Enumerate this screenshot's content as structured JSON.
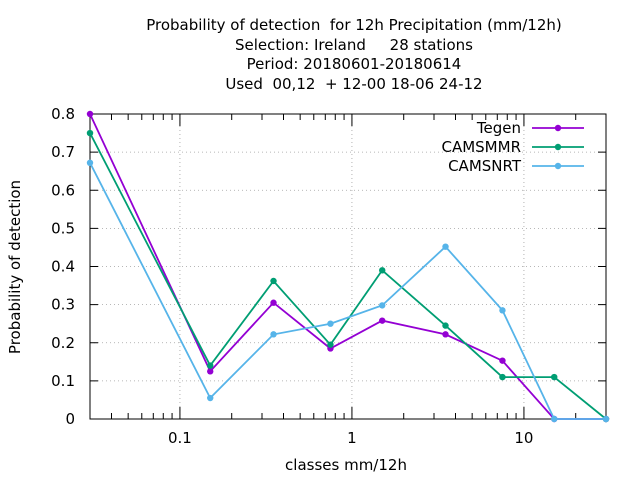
{
  "chart_data": {
    "type": "line",
    "title_lines": [
      "Probability of detection  for 12h Precipitation (mm/12h)",
      "Selection: Ireland     28 stations",
      "Period: 20180601-20180614",
      "Used  00,12  + 12-00 18-06 24-12"
    ],
    "xlabel": "classes mm/12h",
    "ylabel": "Probability of detection",
    "x_scale": "log",
    "xlim": [
      0.03,
      30
    ],
    "ylim": [
      0,
      0.8
    ],
    "x_ticks": [
      {
        "value": 0.1,
        "label": "0.1"
      },
      {
        "value": 1,
        "label": "1"
      },
      {
        "value": 10,
        "label": "10"
      }
    ],
    "y_ticks": [
      {
        "value": 0,
        "label": "0"
      },
      {
        "value": 0.1,
        "label": "0.1"
      },
      {
        "value": 0.2,
        "label": "0.2"
      },
      {
        "value": 0.3,
        "label": "0.3"
      },
      {
        "value": 0.4,
        "label": "0.4"
      },
      {
        "value": 0.5,
        "label": "0.5"
      },
      {
        "value": 0.6,
        "label": "0.6"
      },
      {
        "value": 0.7,
        "label": "0.7"
      },
      {
        "value": 0.8,
        "label": "0.8"
      }
    ],
    "grid": true,
    "legend_position": "top-right",
    "series": [
      {
        "name": "Tegen",
        "color": "#9400d3",
        "x": [
          0.03,
          0.15,
          0.35,
          0.75,
          1.5,
          3.5,
          7.5,
          15,
          30
        ],
        "y": [
          0.8,
          0.125,
          0.305,
          0.185,
          0.258,
          0.222,
          0.153,
          0,
          0
        ]
      },
      {
        "name": "CAMSMMR",
        "color": "#009e73",
        "x": [
          0.03,
          0.15,
          0.35,
          0.75,
          1.5,
          3.5,
          7.5,
          15,
          30
        ],
        "y": [
          0.75,
          0.14,
          0.362,
          0.195,
          0.39,
          0.245,
          0.11,
          0.11,
          0
        ]
      },
      {
        "name": "CAMSNRT",
        "color": "#56b4e9",
        "x": [
          0.03,
          0.15,
          0.35,
          0.75,
          1.5,
          3.5,
          7.5,
          15,
          30
        ],
        "y": [
          0.672,
          0.055,
          0.222,
          0.25,
          0.298,
          0.452,
          0.285,
          0,
          0
        ]
      }
    ]
  }
}
